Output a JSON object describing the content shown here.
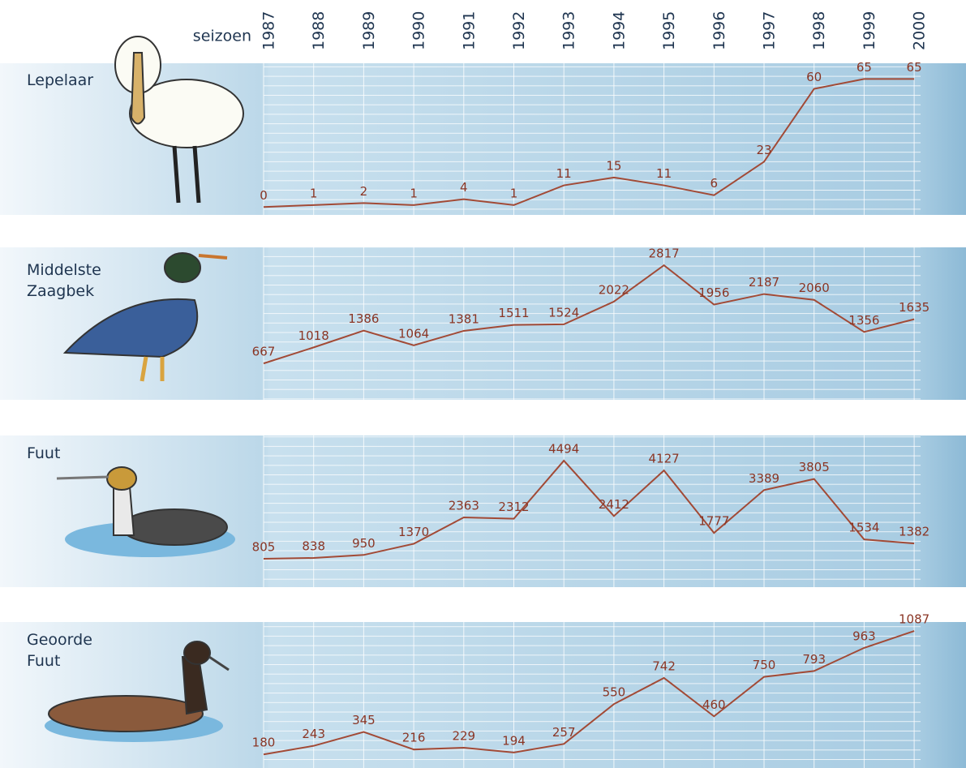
{
  "chart_data": [
    {
      "type": "line",
      "title": "Lepelaar",
      "x_label": "seizoen",
      "categories": [
        "1987",
        "1988",
        "1989",
        "1990",
        "1991",
        "1992",
        "1993",
        "1994",
        "1995",
        "1996",
        "1997",
        "1998",
        "1999",
        "2000"
      ],
      "values": [
        0,
        1,
        2,
        1,
        4,
        1,
        11,
        15,
        11,
        6,
        23,
        60,
        65,
        65
      ],
      "color": "#a24a36",
      "ylim": [
        -4,
        73
      ]
    },
    {
      "type": "line",
      "title": "Middelste Zaagbek",
      "values": [
        667,
        1018,
        1386,
        1064,
        1381,
        1511,
        1524,
        2022,
        2817,
        1956,
        2187,
        2060,
        1356,
        1635
      ],
      "color": "#a24a36",
      "ylim": [
        -130,
        3210
      ]
    },
    {
      "type": "line",
      "title": "Fuut",
      "values": [
        805,
        838,
        950,
        1370,
        2363,
        2312,
        4494,
        2412,
        4127,
        1777,
        3389,
        3805,
        1534,
        1382
      ],
      "color": "#a24a36",
      "ylim": [
        -260,
        5440
      ]
    },
    {
      "type": "line",
      "title": "Geoorde Fuut",
      "values": [
        180,
        243,
        345,
        216,
        229,
        194,
        257,
        550,
        742,
        460,
        750,
        793,
        963,
        1087
      ],
      "color": "#a24a36",
      "ylim": [
        80,
        1153
      ]
    }
  ]
}
